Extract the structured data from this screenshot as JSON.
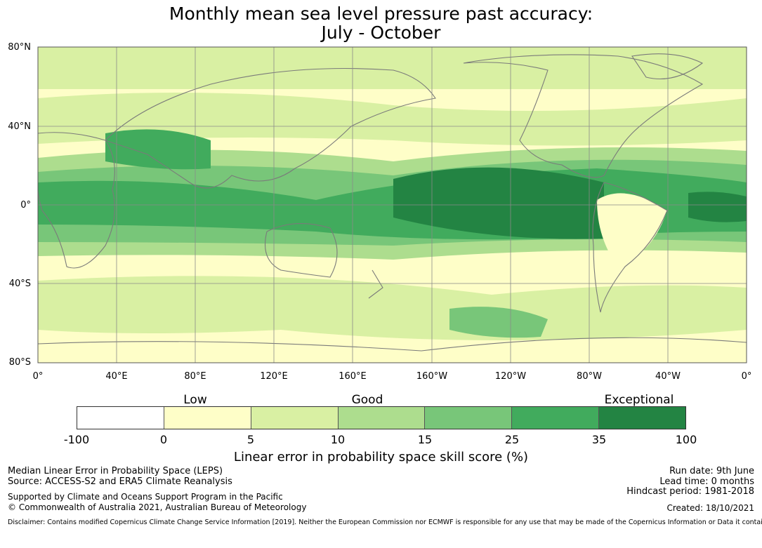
{
  "title": {
    "line1": "Monthly mean sea level pressure past accuracy:",
    "line2": "July - October"
  },
  "map": {
    "lat_labels": [
      "80°N",
      "40°N",
      "0°",
      "40°S",
      "80°S"
    ],
    "lon_labels": [
      "0°",
      "40°E",
      "80°E",
      "120°E",
      "160°E",
      "160°W",
      "120°W",
      "80°W",
      "40°W",
      "0°"
    ],
    "grid": true,
    "colors": {
      "c0": "#ffffff",
      "c1": "#fefec8",
      "c2": "#d9f0a3",
      "c3": "#addd8e",
      "c4": "#78c679",
      "c5": "#41ab5d",
      "c6": "#238443",
      "coast": "#7a7a7a"
    }
  },
  "legend": {
    "categories": [
      "Low",
      "Good",
      "Exceptional"
    ],
    "bins": [
      "-100",
      "0",
      "5",
      "10",
      "15",
      "25",
      "35",
      "100"
    ],
    "label": "Linear error in probability space skill score (%)"
  },
  "footer": {
    "left1": "Median Linear Error in Probability Space (LEPS)",
    "left2": "Source: ACCESS-S2 and ERA5 Climate Reanalysis",
    "left3": "Supported by Climate and Oceans Support Program in the Pacific",
    "left4": "© Commonwealth of Australia 2021, Australian Bureau of Meteorology",
    "right1": "Run date: 9th June",
    "right2": "Lead time: 0 months",
    "right3": "Hindcast period: 1981-2018",
    "right4": "Created: 18/10/2021",
    "disclaimer": "Disclaimer: Contains modified Copernicus Climate Change Service Information [2019]. Neither the European Commission nor ECMWF is responsible for any use that may be made of the Copernicus Information or Data it contains."
  }
}
